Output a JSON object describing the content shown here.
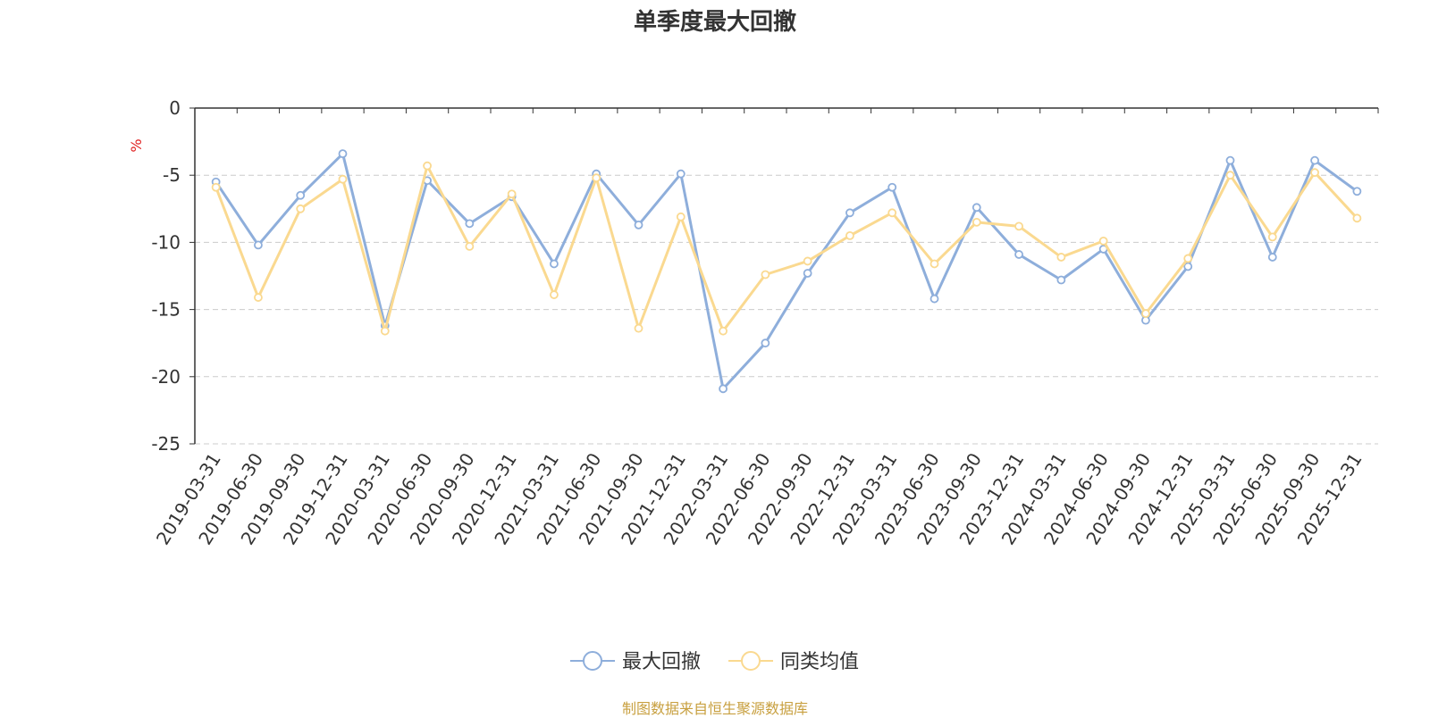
{
  "chart_data": {
    "type": "line",
    "title": "单季度最大回撤",
    "ylabel": "%",
    "ylim": [
      -25,
      0
    ],
    "yticks": [
      0,
      -5,
      -10,
      -15,
      -20,
      -25
    ],
    "grid": true,
    "legend_position": "bottom-center",
    "categories": [
      "2019-03-31",
      "2019-06-30",
      "2019-09-30",
      "2019-12-31",
      "2020-03-31",
      "2020-06-30",
      "2020-09-30",
      "2020-12-31",
      "2021-03-31",
      "2021-06-30",
      "2021-09-30",
      "2021-12-31",
      "2022-03-31",
      "2022-06-30",
      "2022-09-30",
      "2022-12-31",
      "2023-03-31",
      "2023-06-30",
      "2023-09-30",
      "2023-12-31",
      "2024-03-31",
      "2024-06-30",
      "2024-09-30",
      "2024-12-31",
      "2025-03-31",
      "2025-06-30",
      "2025-09-30",
      "2025-12-31"
    ],
    "series": [
      {
        "name": "最大回撤",
        "color": "#8eaedb",
        "values": [
          -5.5,
          -10.2,
          -6.5,
          -3.4,
          -16.2,
          -5.4,
          -8.6,
          -6.6,
          -11.6,
          -4.9,
          -8.7,
          -4.9,
          -20.9,
          -17.5,
          -12.3,
          -7.8,
          -5.9,
          -14.2,
          -7.4,
          -10.9,
          -12.8,
          -10.5,
          -15.8,
          -11.8,
          -3.9,
          -11.1,
          -3.9,
          -6.2
        ]
      },
      {
        "name": "同类均值",
        "color": "#fad990",
        "values": [
          -5.9,
          -14.1,
          -7.5,
          -5.3,
          -16.6,
          -4.3,
          -10.3,
          -6.4,
          -13.9,
          -5.2,
          -16.4,
          -8.1,
          -16.6,
          -12.4,
          -11.4,
          -9.5,
          -7.8,
          -11.6,
          -8.5,
          -8.8,
          -11.1,
          -9.9,
          -15.3,
          -11.2,
          -5.0,
          -9.6,
          -4.8,
          -8.2
        ]
      }
    ]
  },
  "footer": {
    "source": "制图数据来自恒生聚源数据库"
  }
}
